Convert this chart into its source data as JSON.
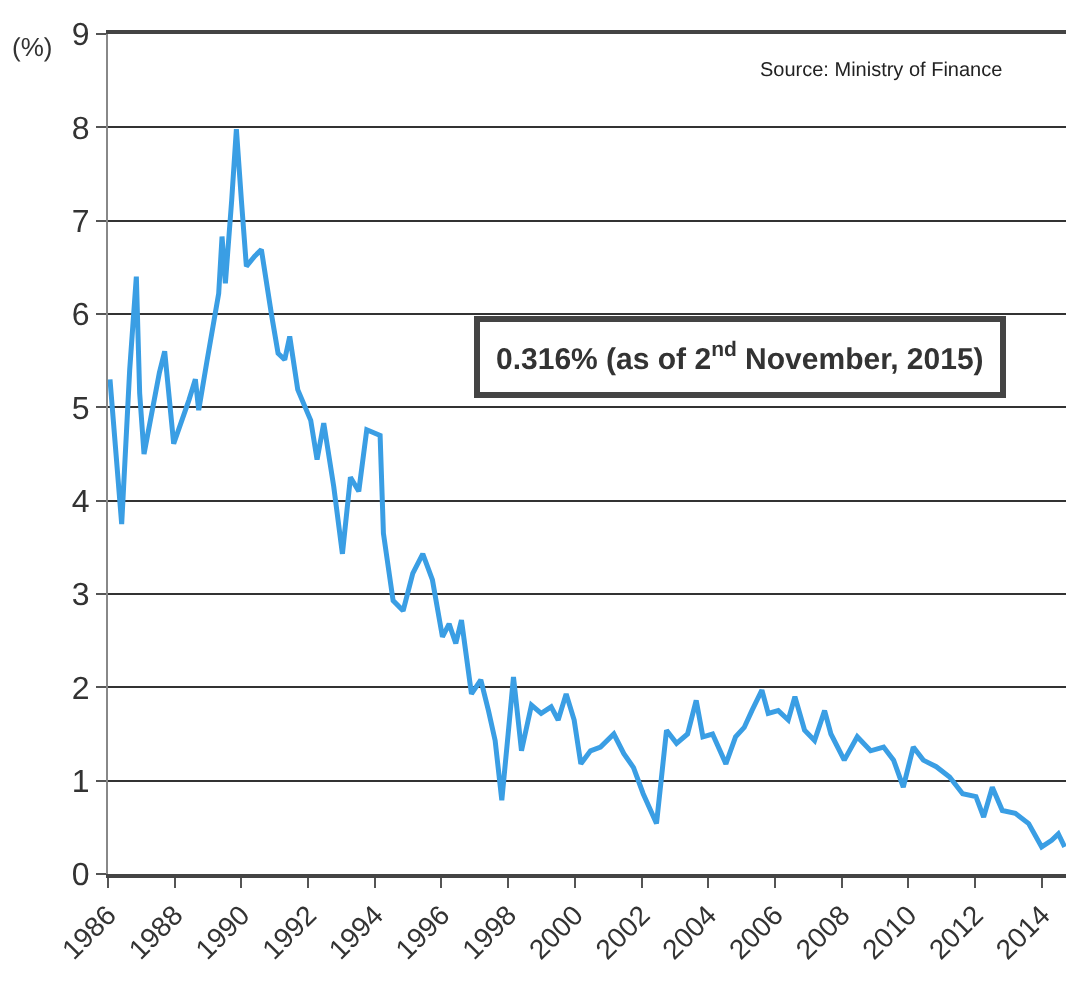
{
  "chart_data": {
    "type": "line",
    "ylabel": "(%)",
    "annotations": [
      "Source: Ministry of Finance",
      "0.316% (as of 2$^{nd}$ November, 2015)"
    ],
    "x": [
      1986.06,
      1986.41,
      1986.65,
      1986.85,
      1986.95,
      1987.08,
      1987.54,
      1987.7,
      1987.97,
      1988.43,
      1988.62,
      1988.72,
      1988.96,
      1989.32,
      1989.42,
      1989.52,
      1989.71,
      1989.85,
      1990.0,
      1990.15,
      1990.4,
      1990.6,
      1990.9,
      1991.1,
      1991.3,
      1991.45,
      1991.69,
      1992.08,
      1992.27,
      1992.47,
      1992.77,
      1993.03,
      1993.27,
      1993.52,
      1993.76,
      1994.16,
      1994.26,
      1994.55,
      1994.85,
      1995.14,
      1995.44,
      1995.73,
      1996.03,
      1996.23,
      1996.43,
      1996.6,
      1996.9,
      1997.18,
      1997.41,
      1997.61,
      1997.81,
      1998.0,
      1998.16,
      1998.4,
      1998.7,
      1998.99,
      1999.29,
      1999.5,
      1999.74,
      1999.98,
      2000.18,
      2000.47,
      2000.77,
      2001.17,
      2001.47,
      2001.76,
      2002.05,
      2002.45,
      2002.75,
      2003.05,
      2003.38,
      2003.64,
      2003.84,
      2004.13,
      2004.53,
      2004.82,
      2005.08,
      2005.31,
      2005.61,
      2005.8,
      2006.1,
      2006.4,
      2006.6,
      2006.89,
      2007.19,
      2007.49,
      2007.68,
      2008.08,
      2008.47,
      2008.87,
      2009.26,
      2009.56,
      2009.85,
      2010.15,
      2010.45,
      2010.84,
      2011.24,
      2011.63,
      2012.03,
      2012.26,
      2012.52,
      2012.82,
      2013.21,
      2013.61,
      2014.0,
      2014.3,
      2014.5,
      2014.69
    ],
    "series": [
      {
        "color": "#3a9ee4",
        "values": [
          5.3,
          3.75,
          5.4,
          6.4,
          5.15,
          4.5,
          5.37,
          5.6,
          4.61,
          5.08,
          5.3,
          4.97,
          5.48,
          6.22,
          6.83,
          6.33,
          7.22,
          7.98,
          7.22,
          6.51,
          6.62,
          6.69,
          6.0,
          5.58,
          5.51,
          5.76,
          5.19,
          4.86,
          4.44,
          4.83,
          4.15,
          3.43,
          4.25,
          4.1,
          4.76,
          4.7,
          3.65,
          2.93,
          2.82,
          3.22,
          3.43,
          3.15,
          2.54,
          2.68,
          2.47,
          2.72,
          1.93,
          2.08,
          1.75,
          1.43,
          0.79,
          1.5,
          2.11,
          1.32,
          1.81,
          1.72,
          1.79,
          1.65,
          1.93,
          1.65,
          1.18,
          1.32,
          1.36,
          1.5,
          1.29,
          1.14,
          0.86,
          0.54,
          1.54,
          1.4,
          1.5,
          1.86,
          1.47,
          1.5,
          1.18,
          1.47,
          1.57,
          1.75,
          1.97,
          1.72,
          1.75,
          1.65,
          1.9,
          1.54,
          1.43,
          1.75,
          1.5,
          1.22,
          1.47,
          1.32,
          1.36,
          1.22,
          0.93,
          1.36,
          1.22,
          1.15,
          1.04,
          0.86,
          0.83,
          0.61,
          0.93,
          0.68,
          0.65,
          0.54,
          0.29,
          0.36,
          0.43,
          0.29
        ]
      }
    ],
    "xlim": [
      1986,
      2014.73
    ],
    "xticks": [
      1986,
      1988,
      1990,
      1992,
      1994,
      1996,
      1998,
      2000,
      2002,
      2004,
      2006,
      2008,
      2010,
      2012,
      2014
    ],
    "ylim": [
      0,
      9
    ],
    "yticks": [
      0,
      1,
      2,
      3,
      4,
      5,
      6,
      7,
      8,
      9
    ],
    "grid": "y",
    "marker": "none",
    "line_style": "solid"
  }
}
